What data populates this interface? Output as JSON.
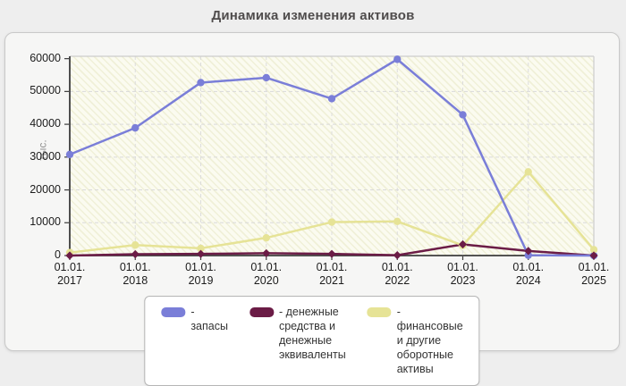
{
  "page": {
    "title": "Динамика изменения активов"
  },
  "chart_data": {
    "type": "line",
    "title": "Динамика изменения активов",
    "ylabel": "тыс.",
    "xlabel": "",
    "x_tick_line1": "01.01.",
    "categories": [
      "2017",
      "2018",
      "2019",
      "2020",
      "2021",
      "2022",
      "2023",
      "2024",
      "2025"
    ],
    "yticks": [
      0,
      10000,
      20000,
      30000,
      40000,
      50000,
      60000
    ],
    "ylim": [
      0,
      60000
    ],
    "grid": true,
    "grid_style": "dashed",
    "legend_position": "bottom",
    "plot_background": "#fbfbf0",
    "series": [
      {
        "name": "запасы",
        "legend_label": "- запасы",
        "color": "#7a7ed8",
        "marker": "circle",
        "values": [
          30800,
          38900,
          52700,
          54200,
          47800,
          59800,
          42900,
          100,
          0
        ]
      },
      {
        "name": "денежные средства и денежные эквиваленты",
        "legend_label": "- денежные средства и денежные эквиваленты",
        "color": "#6b1c46",
        "marker": "diamond",
        "values": [
          0,
          400,
          500,
          700,
          500,
          100,
          3400,
          1400,
          0
        ]
      },
      {
        "name": "финансовые и другие оборотные активы",
        "legend_label": "- финансовые и другие оборотные активы",
        "color": "#e6e396",
        "marker": "circle",
        "values": [
          900,
          3200,
          2200,
          5400,
          10200,
          10400,
          3100,
          25500,
          1800
        ]
      }
    ]
  }
}
